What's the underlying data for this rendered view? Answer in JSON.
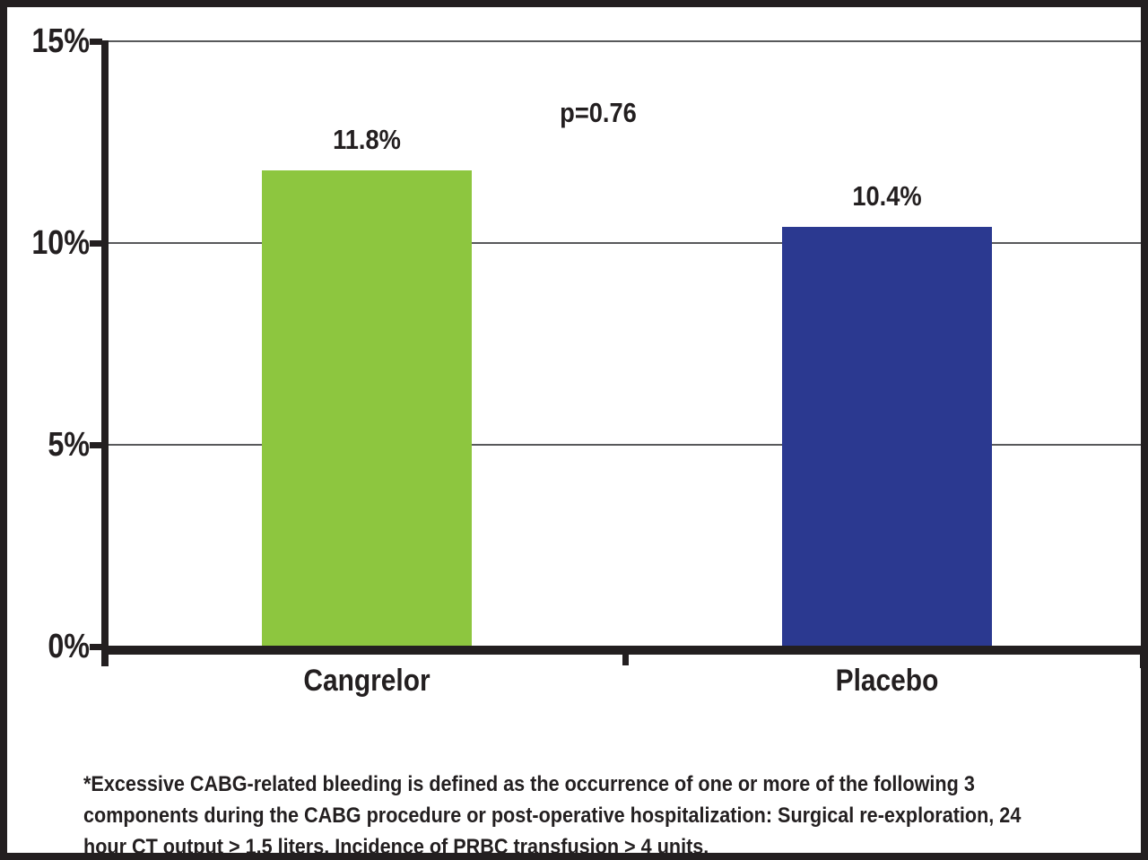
{
  "chart_data": {
    "type": "bar",
    "title": "",
    "categories": [
      "Cangrelor",
      "Placebo"
    ],
    "values": [
      11.8,
      10.4
    ],
    "value_labels": [
      "11.8%",
      "10.4%"
    ],
    "bar_colors": [
      "#8DC63F",
      "#2B3990"
    ],
    "annotation": "p=0.76",
    "xlabel": "",
    "ylabel": "",
    "ylim": [
      0,
      15
    ],
    "yticks": [
      {
        "value": 0,
        "label": "0%"
      },
      {
        "value": 5,
        "label": "5%"
      },
      {
        "value": 10,
        "label": "10%"
      },
      {
        "value": 15,
        "label": "15%"
      }
    ],
    "grid": true,
    "legend_position": "none"
  },
  "footnote_lines": [
    "*Excessive CABG-related bleeding is defined as the occurrence of one or more of the following 3",
    "components during the CABG procedure or post-operative hospitalization: Surgical re-exploration, 24",
    "hour CT output > 1.5 liters, Incidence of PRBC transfusion > 4 units."
  ],
  "colors": {
    "bar_green": "#8DC63F",
    "bar_blue": "#2B3990",
    "frame_border": "#231F20",
    "gridline": "#58595B",
    "text": "#231F20"
  }
}
